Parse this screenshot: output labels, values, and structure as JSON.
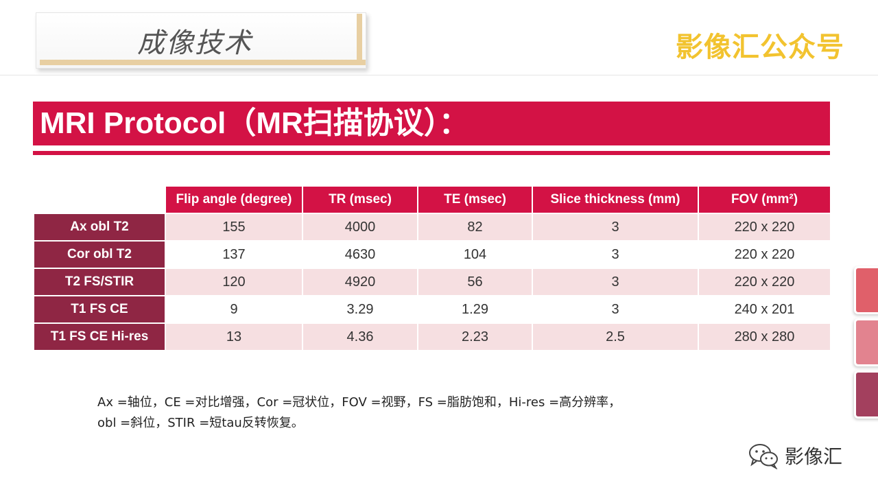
{
  "header": {
    "section_title": "成像技术",
    "brand": "影像汇公众号"
  },
  "banner": {
    "title": "MRI Protocol（MR扫描协议）："
  },
  "table": {
    "columns": [
      "Flip angle (degree)",
      "TR (msec)",
      "TE (msec)",
      "Slice thickness (mm)",
      "FOV (mm²)"
    ],
    "rows": [
      {
        "label": "Ax obl T2",
        "cells": [
          "155",
          "4000",
          "82",
          "3",
          "220 x 220"
        ]
      },
      {
        "label": "Cor obl T2",
        "cells": [
          "137",
          "4630",
          "104",
          "3",
          "220 x 220"
        ]
      },
      {
        "label": "T2 FS/STIR",
        "cells": [
          "120",
          "4920",
          "56",
          "3",
          "220 x 220"
        ]
      },
      {
        "label": "T1 FS CE",
        "cells": [
          "9",
          "3.29",
          "1.29",
          "3",
          "240 x 201"
        ]
      },
      {
        "label": "T1 FS CE Hi-res",
        "cells": [
          "13",
          "4.36",
          "2.23",
          "2.5",
          "280 x 280"
        ]
      }
    ]
  },
  "footnote": {
    "line1": "Ax =轴位，CE =对比增强，Cor =冠状位，FOV =视野，FS =脂肪饱和，Hi-res =高分辨率，",
    "line2": "obl =斜位，STIR =短tau反转恢复。"
  },
  "watermark": {
    "text": "影像汇",
    "icon": "wechat-icon"
  },
  "colors": {
    "accent": "#d31245",
    "row_header": "#8f2644",
    "row_alt": "#f6dfe1",
    "brand": "#f2c32f",
    "side_tabs": [
      "#e0606a",
      "#e2838f",
      "#a3405e"
    ]
  }
}
